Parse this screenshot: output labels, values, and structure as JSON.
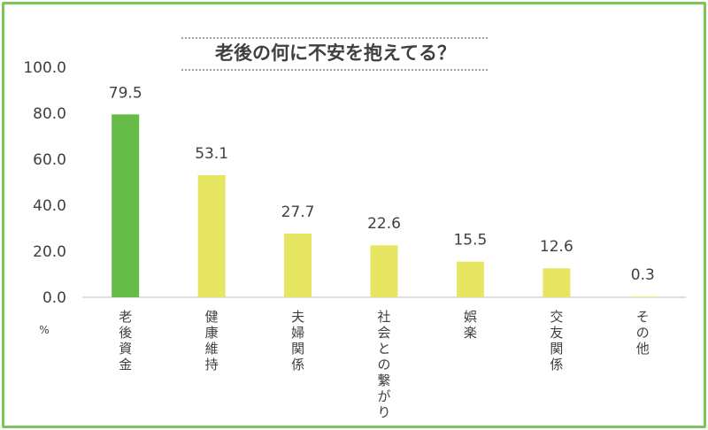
{
  "chart_data": {
    "type": "bar",
    "title": "老後の何に不安を抱えてる？",
    "categories": [
      "老後資金",
      "健康維持",
      "夫婦関係",
      "社会との繋がり",
      "娯楽",
      "交友関係",
      "その他"
    ],
    "values": [
      79.5,
      53.1,
      27.7,
      22.6,
      15.5,
      12.6,
      0.3
    ],
    "value_labels": [
      "79.5",
      "53.1",
      "27.7",
      "22.6",
      "15.5",
      "12.6",
      "0.3"
    ],
    "y_ticks": [
      "0.0",
      "20.0",
      "40.0",
      "60.0",
      "80.0",
      "100.0"
    ],
    "ylim": [
      0,
      100
    ],
    "ylabel": "%",
    "xlabel": "",
    "grid": false,
    "legend": "none",
    "colors": {
      "highlight": "#66bb46",
      "bar": "#e6e663",
      "border": "#7cc55e",
      "text": "#404040",
      "axis": "#bfbfbf"
    },
    "highlight_index": 0
  }
}
